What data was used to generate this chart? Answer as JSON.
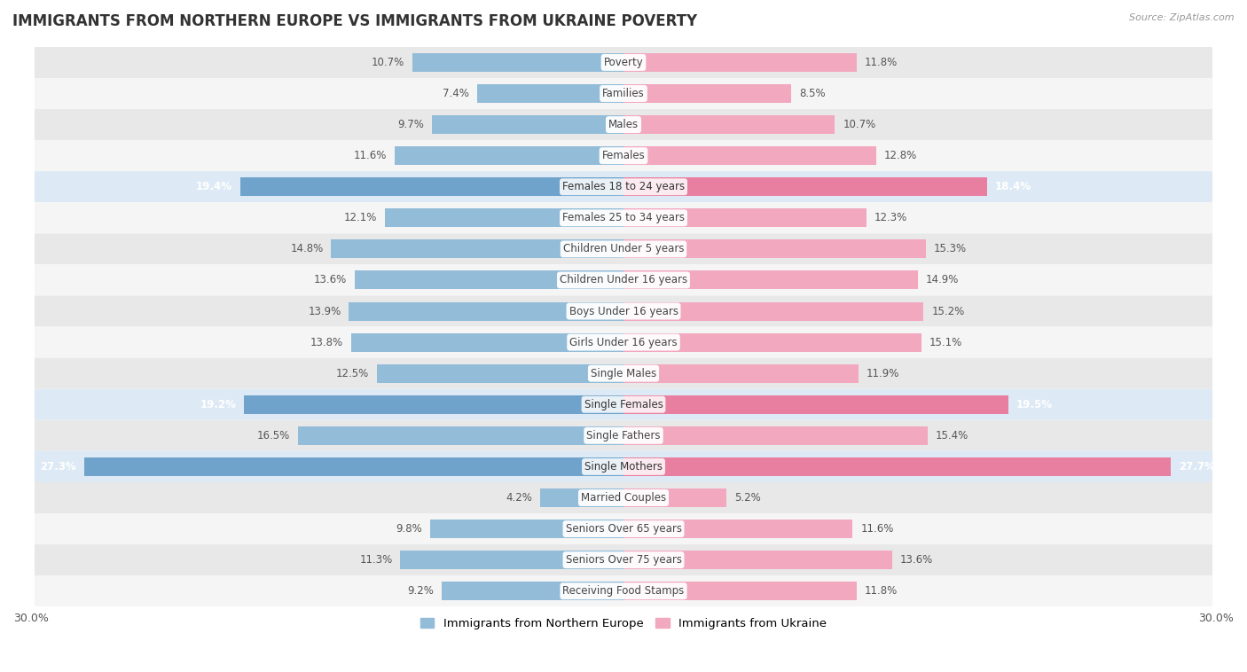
{
  "title": "IMMIGRANTS FROM NORTHERN EUROPE VS IMMIGRANTS FROM UKRAINE POVERTY",
  "source": "Source: ZipAtlas.com",
  "categories": [
    "Poverty",
    "Families",
    "Males",
    "Females",
    "Females 18 to 24 years",
    "Females 25 to 34 years",
    "Children Under 5 years",
    "Children Under 16 years",
    "Boys Under 16 years",
    "Girls Under 16 years",
    "Single Males",
    "Single Females",
    "Single Fathers",
    "Single Mothers",
    "Married Couples",
    "Seniors Over 65 years",
    "Seniors Over 75 years",
    "Receiving Food Stamps"
  ],
  "left_values": [
    10.7,
    7.4,
    9.7,
    11.6,
    19.4,
    12.1,
    14.8,
    13.6,
    13.9,
    13.8,
    12.5,
    19.2,
    16.5,
    27.3,
    4.2,
    9.8,
    11.3,
    9.2
  ],
  "right_values": [
    11.8,
    8.5,
    10.7,
    12.8,
    18.4,
    12.3,
    15.3,
    14.9,
    15.2,
    15.1,
    11.9,
    19.5,
    15.4,
    27.7,
    5.2,
    11.6,
    13.6,
    11.8
  ],
  "left_color": "#92bcd8",
  "right_color": "#f2a8bf",
  "left_highlight_color": "#6fa3cc",
  "right_highlight_color": "#e87fa0",
  "highlight_rows": [
    4,
    11,
    13
  ],
  "left_label": "Immigrants from Northern Europe",
  "right_label": "Immigrants from Ukraine",
  "xlim": 30.0,
  "background_color": "#ffffff",
  "row_bg_color_odd": "#e8e8e8",
  "row_bg_color_even": "#f5f5f5",
  "title_fontsize": 12,
  "bar_height": 0.6,
  "label_fontsize": 8.5,
  "value_fontsize": 8.5
}
